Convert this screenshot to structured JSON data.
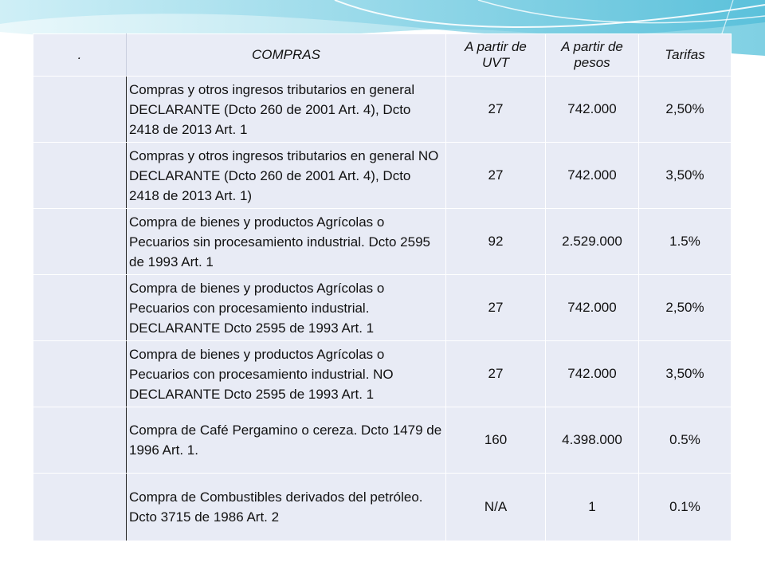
{
  "colors": {
    "table_bg": "#e8ebf5",
    "border": "#ffffff",
    "accent_left_line": "#222222",
    "wave_light": "#d6f0f6",
    "wave_mid": "#9fdbe9",
    "wave_dark": "#5cc3dc"
  },
  "table": {
    "headers": {
      "col0": ".",
      "compras": "COMPRAS",
      "uvt": "A partir de UVT",
      "pesos": "A partir de pesos",
      "tarifas": "Tarifas"
    },
    "rows": [
      {
        "desc": "Compras y otros ingresos tributarios en general DECLARANTE (Dcto 260 de 2001 Art. 4), Dcto 2418 de 2013 Art. 1",
        "uvt": "27",
        "pesos": "742.000",
        "tarifa": "2,50%"
      },
      {
        "desc": "Compras y otros ingresos tributarios en general NO DECLARANTE (Dcto 260 de 2001 Art. 4), Dcto 2418 de 2013 Art. 1)",
        "uvt": "27",
        "pesos": "742.000",
        "tarifa": "3,50%"
      },
      {
        "desc": "Compra de bienes y productos Agrícolas o Pecuarios sin procesamiento industrial. Dcto 2595 de 1993 Art. 1",
        "uvt": "92",
        "pesos": "2.529.000",
        "tarifa": "1.5%"
      },
      {
        "desc": "Compra de bienes y productos Agrícolas o Pecuarios con procesamiento industrial. DECLARANTE Dcto 2595 de 1993 Art. 1",
        "uvt": "27",
        "pesos": "742.000",
        "tarifa": "2,50%"
      },
      {
        "desc": "Compra de bienes y productos Agrícolas o Pecuarios con procesamiento industrial. NO DECLARANTE Dcto 2595 de 1993 Art. 1",
        "uvt": "27",
        "pesos": "742.000",
        "tarifa": "3,50%"
      },
      {
        "desc": "Compra de Café Pergamino o cereza. Dcto 1479 de 1996 Art. 1.",
        "uvt": "160",
        "pesos": "4.398.000",
        "tarifa": "0.5%"
      },
      {
        "desc": "Compra de Combustibles derivados del petróleo. Dcto 3715 de 1986 Art. 2",
        "uvt": "N/A",
        "pesos": "1",
        "tarifa": "0.1%"
      }
    ]
  }
}
